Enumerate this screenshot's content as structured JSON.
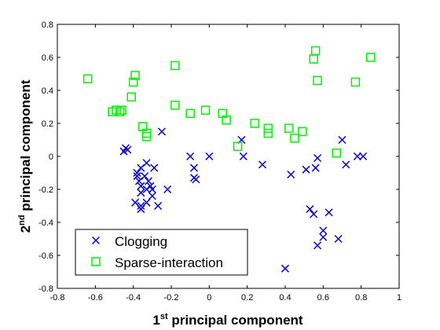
{
  "chart_data": {
    "type": "scatter",
    "xlabel": {
      "prefix": "1",
      "sup": "st",
      "suffix": " principal component"
    },
    "ylabel": {
      "prefix": "2",
      "sup": "nd",
      "suffix": " principal component"
    },
    "xlim": [
      -0.8,
      1
    ],
    "ylim": [
      -0.8,
      0.8
    ],
    "xticks": [
      "-0.8",
      "-0.6",
      "-0.4",
      "-0.2",
      "0",
      "0.2",
      "0.4",
      "0.6",
      "0.8",
      "1"
    ],
    "yticks": [
      "-0.8",
      "-0.6",
      "-0.4",
      "-0.2",
      "0",
      "0.2",
      "0.4",
      "0.6",
      "0.8"
    ],
    "grid": false,
    "legend_position": "bottom-left",
    "series": [
      {
        "name": "Clogging",
        "marker": "x",
        "color": "#0000cc",
        "points": [
          [
            -0.25,
            0.15
          ],
          [
            -0.45,
            0.03
          ],
          [
            -0.44,
            0.05
          ],
          [
            -0.43,
            0.04
          ],
          [
            -0.38,
            -0.1
          ],
          [
            -0.36,
            -0.07
          ],
          [
            -0.33,
            -0.04
          ],
          [
            -0.29,
            -0.07
          ],
          [
            -0.38,
            -0.12
          ],
          [
            -0.34,
            -0.12
          ],
          [
            -0.37,
            -0.15
          ],
          [
            -0.32,
            -0.15
          ],
          [
            -0.36,
            -0.18
          ],
          [
            -0.31,
            -0.18
          ],
          [
            -0.3,
            -0.2
          ],
          [
            -0.33,
            -0.2
          ],
          [
            -0.36,
            -0.22
          ],
          [
            -0.3,
            -0.24
          ],
          [
            -0.22,
            -0.2
          ],
          [
            -0.39,
            -0.28
          ],
          [
            -0.33,
            -0.28
          ],
          [
            -0.36,
            -0.3
          ],
          [
            -0.36,
            -0.32
          ],
          [
            -0.27,
            -0.3
          ],
          [
            -0.1,
            0.0
          ],
          [
            -0.08,
            -0.07
          ],
          [
            -0.08,
            -0.13
          ],
          [
            -0.07,
            -0.14
          ],
          [
            0.0,
            0.0
          ],
          [
            0.17,
            0.1
          ],
          [
            0.18,
            0.0
          ],
          [
            0.28,
            -0.05
          ],
          [
            0.43,
            -0.11
          ],
          [
            0.51,
            -0.08
          ],
          [
            0.56,
            -0.07
          ],
          [
            0.57,
            -0.01
          ],
          [
            0.7,
            0.1
          ],
          [
            0.72,
            -0.05
          ],
          [
            0.78,
            0.0
          ],
          [
            0.81,
            0.0
          ],
          [
            0.53,
            -0.32
          ],
          [
            0.55,
            -0.35
          ],
          [
            0.6,
            -0.45
          ],
          [
            0.6,
            -0.49
          ],
          [
            0.57,
            -0.54
          ],
          [
            0.63,
            -0.34
          ],
          [
            0.68,
            -0.5
          ],
          [
            0.4,
            -0.68
          ]
        ]
      },
      {
        "name": "Sparse-interaction",
        "marker": "square",
        "color": "#00ee00",
        "points": [
          [
            -0.64,
            0.47
          ],
          [
            -0.51,
            0.27
          ],
          [
            -0.49,
            0.28
          ],
          [
            -0.47,
            0.27
          ],
          [
            -0.46,
            0.28
          ],
          [
            -0.41,
            0.36
          ],
          [
            -0.4,
            0.45
          ],
          [
            -0.39,
            0.49
          ],
          [
            -0.35,
            0.18
          ],
          [
            -0.33,
            0.14
          ],
          [
            -0.33,
            0.12
          ],
          [
            -0.18,
            0.55
          ],
          [
            -0.18,
            0.31
          ],
          [
            -0.1,
            0.26
          ],
          [
            -0.02,
            0.28
          ],
          [
            0.07,
            0.26
          ],
          [
            0.09,
            0.22
          ],
          [
            0.15,
            0.06
          ],
          [
            0.24,
            0.2
          ],
          [
            0.31,
            0.17
          ],
          [
            0.31,
            0.14
          ],
          [
            0.42,
            0.17
          ],
          [
            0.45,
            0.11
          ],
          [
            0.49,
            0.15
          ],
          [
            0.55,
            0.59
          ],
          [
            0.56,
            0.64
          ],
          [
            0.57,
            0.46
          ],
          [
            0.67,
            0.02
          ],
          [
            0.77,
            0.45
          ],
          [
            0.85,
            0.6
          ]
        ]
      }
    ]
  }
}
